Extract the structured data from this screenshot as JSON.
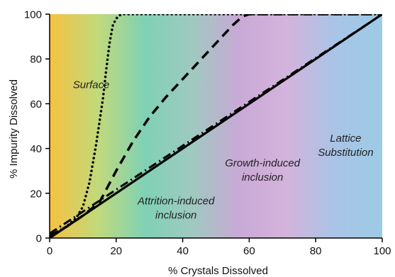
{
  "chart_data": {
    "type": "line",
    "title": "",
    "xlabel": "% Crystals Dissolved",
    "ylabel": "% Impurity Dissolved",
    "xlim": [
      0,
      100
    ],
    "ylim": [
      0,
      100
    ],
    "xticks": [
      "0",
      "20",
      "40",
      "60",
      "80",
      "100"
    ],
    "yticks": [
      "0",
      "20",
      "40",
      "60",
      "80",
      "100"
    ],
    "grid": false,
    "legend": "none",
    "background_gradient": [
      "#f5c242",
      "#c2d97a",
      "#7fd1b5",
      "#9fc9c0",
      "#c9a9d6",
      "#d4b3dc",
      "#a9c4e6",
      "#9ccbe6"
    ],
    "series": [
      {
        "style": "dotted",
        "x": [
          0,
          5,
          8,
          10,
          12,
          14,
          16,
          17,
          18,
          19,
          20,
          21,
          22,
          24,
          100
        ],
        "y": [
          1,
          5,
          9,
          14,
          25,
          42,
          62,
          75,
          87,
          95,
          98,
          99.5,
          100,
          100,
          100
        ]
      },
      {
        "style": "dashed",
        "x": [
          0,
          5,
          10,
          15,
          20,
          25,
          30,
          35,
          40,
          45,
          50,
          55,
          58,
          60,
          100
        ],
        "y": [
          1,
          5,
          10,
          16,
          30,
          43,
          54,
          63,
          71,
          79,
          87,
          95,
          99,
          100,
          100
        ]
      },
      {
        "style": "dashdot",
        "x": [
          0,
          10,
          20,
          30,
          40,
          50,
          60,
          70,
          80,
          90,
          100
        ],
        "y": [
          2,
          11.8,
          21.6,
          31.4,
          41.2,
          51,
          60.8,
          70.6,
          80.4,
          90.2,
          100
        ]
      },
      {
        "style": "solid",
        "x": [
          0,
          100
        ],
        "y": [
          0,
          100
        ]
      }
    ],
    "annotations": [
      {
        "lines": [
          "Surface"
        ],
        "x": 12.5,
        "y": 67
      },
      {
        "lines": [
          "Attrition-induced",
          "inclusion"
        ],
        "x": 38,
        "y": 15
      },
      {
        "lines": [
          "Growth-induced",
          "inclusion"
        ],
        "x": 64,
        "y": 32
      },
      {
        "lines": [
          "Lattice",
          "Substitution"
        ],
        "x": 89,
        "y": 43
      }
    ]
  }
}
